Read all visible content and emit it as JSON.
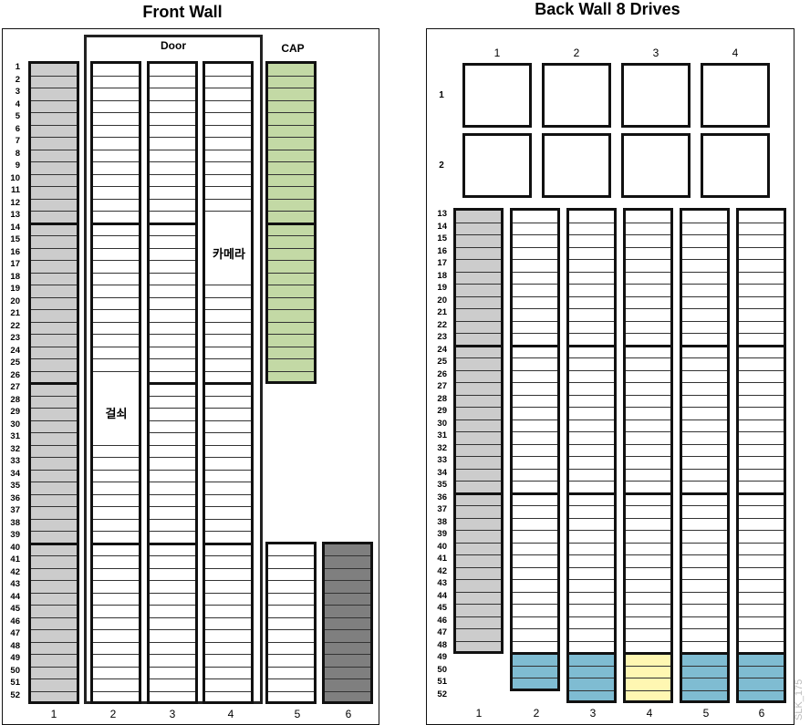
{
  "front_wall": {
    "title": "Front Wall",
    "door_label": "Door",
    "cap_label": "CAP",
    "camera_label": "카메라",
    "lock_label": "걸쇠",
    "row_labels": [
      "1",
      "2",
      "3",
      "4",
      "5",
      "6",
      "7",
      "8",
      "9",
      "10",
      "11",
      "12",
      "13",
      "14",
      "15",
      "16",
      "17",
      "18",
      "19",
      "20",
      "21",
      "22",
      "23",
      "24",
      "25",
      "26",
      "27",
      "28",
      "29",
      "30",
      "31",
      "32",
      "33",
      "34",
      "35",
      "36",
      "37",
      "38",
      "39",
      "40",
      "41",
      "42",
      "43",
      "44",
      "45",
      "46",
      "47",
      "48",
      "49",
      "50",
      "51",
      "52"
    ],
    "column_labels": [
      "1",
      "2",
      "3",
      "4",
      "5",
      "6"
    ]
  },
  "back_wall": {
    "title": "Back Wall 8 Drives",
    "drive_column_labels": [
      "1",
      "2",
      "3",
      "4"
    ],
    "drive_row_labels": [
      "1",
      "2"
    ],
    "row_labels": [
      "13",
      "14",
      "15",
      "16",
      "17",
      "18",
      "19",
      "20",
      "21",
      "22",
      "23",
      "24",
      "25",
      "26",
      "27",
      "28",
      "29",
      "30",
      "31",
      "32",
      "33",
      "34",
      "35",
      "36",
      "37",
      "38",
      "39",
      "40",
      "41",
      "42",
      "43",
      "44",
      "45",
      "46",
      "47",
      "48",
      "49",
      "50",
      "51",
      "52"
    ],
    "column_labels": [
      "1",
      "2",
      "3",
      "4",
      "5",
      "6"
    ]
  },
  "watermark": "SLK_175",
  "colors": {
    "gray_slot": "#cccccc",
    "dark_slot": "#7f7f7f",
    "cap_green": "#c3d9a5",
    "blue_slot": "#7fbcd2",
    "yellow_slot": "#fff7b2"
  }
}
